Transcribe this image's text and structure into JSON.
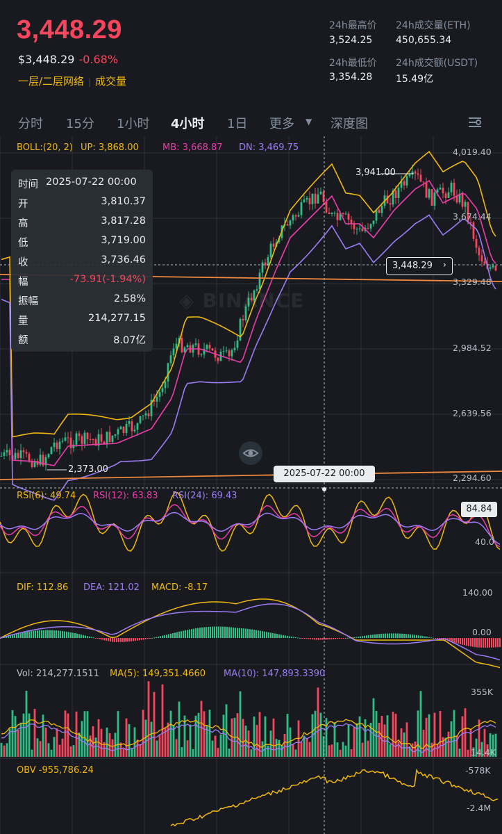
{
  "header": {
    "price": "3,448.29",
    "price_usd": "$3,448.29",
    "change": "-0.68%",
    "tag_layer": "一层/二层网络",
    "tag_volume": "成交量"
  },
  "stats": {
    "high_label": "24h最高价",
    "high_value": "3,524.25",
    "vol_eth_label": "24h成交量(ETH)",
    "vol_eth_value": "450,655.34",
    "low_label": "24h最低价",
    "low_value": "3,354.28",
    "vol_usdt_label": "24h成交额(USDT)",
    "vol_usdt_value": "15.49亿"
  },
  "tabs": [
    {
      "label": "分时"
    },
    {
      "label": "15分"
    },
    {
      "label": "1小时"
    },
    {
      "label": "4小时",
      "active": true
    },
    {
      "label": "1日"
    },
    {
      "label": "更多"
    },
    {
      "label": "深度图"
    }
  ],
  "boll": {
    "title": "BOLL:(20, 2)",
    "up": "UP: 3,868.00",
    "mb": "MB: 3,668.87",
    "dn": "DN: 3,469.75"
  },
  "price_axis": [
    "4,019.40",
    "3,674.44",
    "3,329.48",
    "2,984.52",
    "2,639.56",
    "2,294.60"
  ],
  "markers": {
    "high": "3,941.00",
    "low": "2,373.00",
    "current": "3,448.29",
    "crosshair_date": "2025-07-22 00:00"
  },
  "tooltip": [
    {
      "k": "时间",
      "v": "2025-07-22 00:00"
    },
    {
      "k": "开",
      "v": "3,810.37"
    },
    {
      "k": "高",
      "v": "3,817.28"
    },
    {
      "k": "低",
      "v": "3,719.00"
    },
    {
      "k": "收",
      "v": "3,736.46"
    },
    {
      "k": "幅",
      "v": "-73.91(-1.94%)",
      "red": true
    },
    {
      "k": "振幅",
      "v": "2.58%"
    },
    {
      "k": "量",
      "v": "214,277.15"
    },
    {
      "k": "额",
      "v": "8.07亿"
    }
  ],
  "watermark": "BINANCE",
  "rsi": {
    "r6": "RSI(6): 49.74",
    "r12": "RSI(12): 63.83",
    "r24": "RSI(24): 69.43",
    "box": "84.84",
    "axis": "40.0"
  },
  "macd": {
    "dif": "DIF: 112.86",
    "dea": "DEA: 121.02",
    "macd": "MACD: -8.17",
    "axis_top": "140.00",
    "axis_zero": "0.00"
  },
  "vol": {
    "vol": "Vol: 214,277.1511",
    "ma5": "MA(5): 149,351.4660",
    "ma10": "MA(10): 147,893.3390",
    "axis_top": "355K",
    "axis_bottom": "14.4K"
  },
  "obv": {
    "label": "OBV -955,786.24",
    "axis_top": "-578K",
    "axis_bottom": "-2.4M"
  },
  "colors": {
    "up": "#2ebd85",
    "down": "#f6465d",
    "yellow": "#f0b90b",
    "pink": "#e93ea8",
    "purple": "#9c7cf4"
  }
}
